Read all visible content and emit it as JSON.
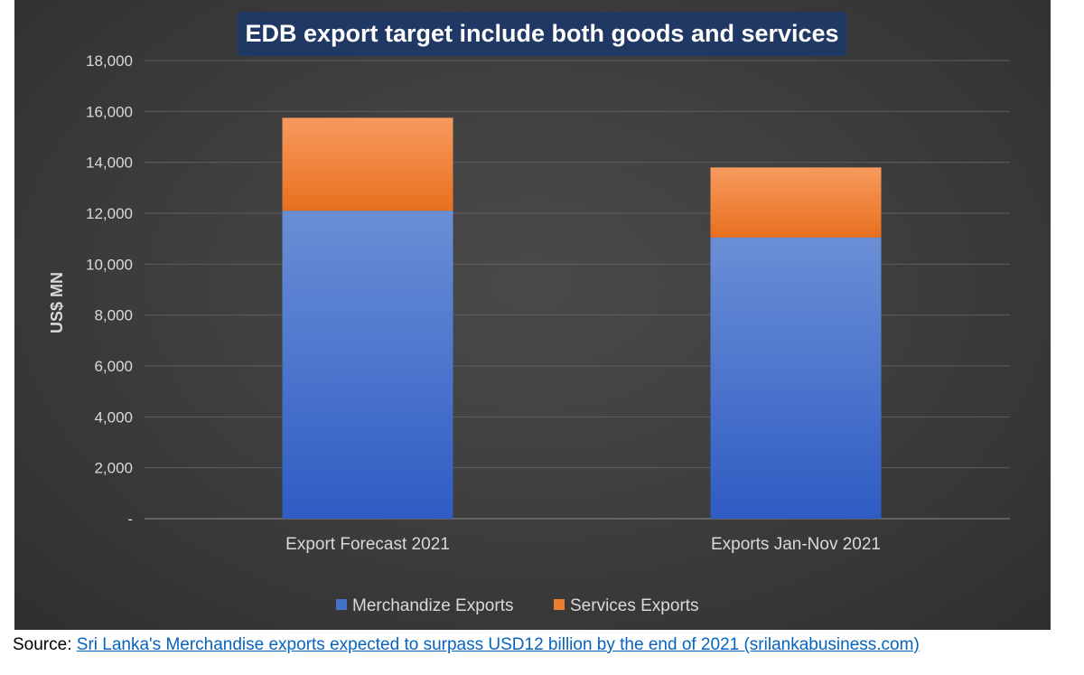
{
  "chart_data": {
    "type": "bar",
    "stacked": true,
    "title": "EDB export target include both goods and services",
    "xlabel": "",
    "ylabel": "US$ MN",
    "ylim": [
      0,
      18000
    ],
    "yticks": [
      0,
      2000,
      4000,
      6000,
      8000,
      10000,
      12000,
      14000,
      16000,
      18000
    ],
    "ytick_labels": [
      "-",
      "2,000",
      "4,000",
      "6,000",
      "8,000",
      "10,000",
      "12,000",
      "14,000",
      "16,000",
      "18,000"
    ],
    "grid": true,
    "legend_position": "bottom",
    "categories": [
      "Export Forecast 2021",
      "Exports Jan-Nov 2021"
    ],
    "series": [
      {
        "name": "Merchandize Exports",
        "values": [
          12100,
          11050
        ],
        "color": "#4472c4"
      },
      {
        "name": "Services Exports",
        "values": [
          3650,
          2750
        ],
        "color": "#ed7d31"
      }
    ]
  },
  "source": {
    "prefix": "Source: ",
    "link_text": "Sri Lanka's Merchandise exports expected to surpass USD12 billion by the end of 2021 (srilankabusiness.com)"
  }
}
